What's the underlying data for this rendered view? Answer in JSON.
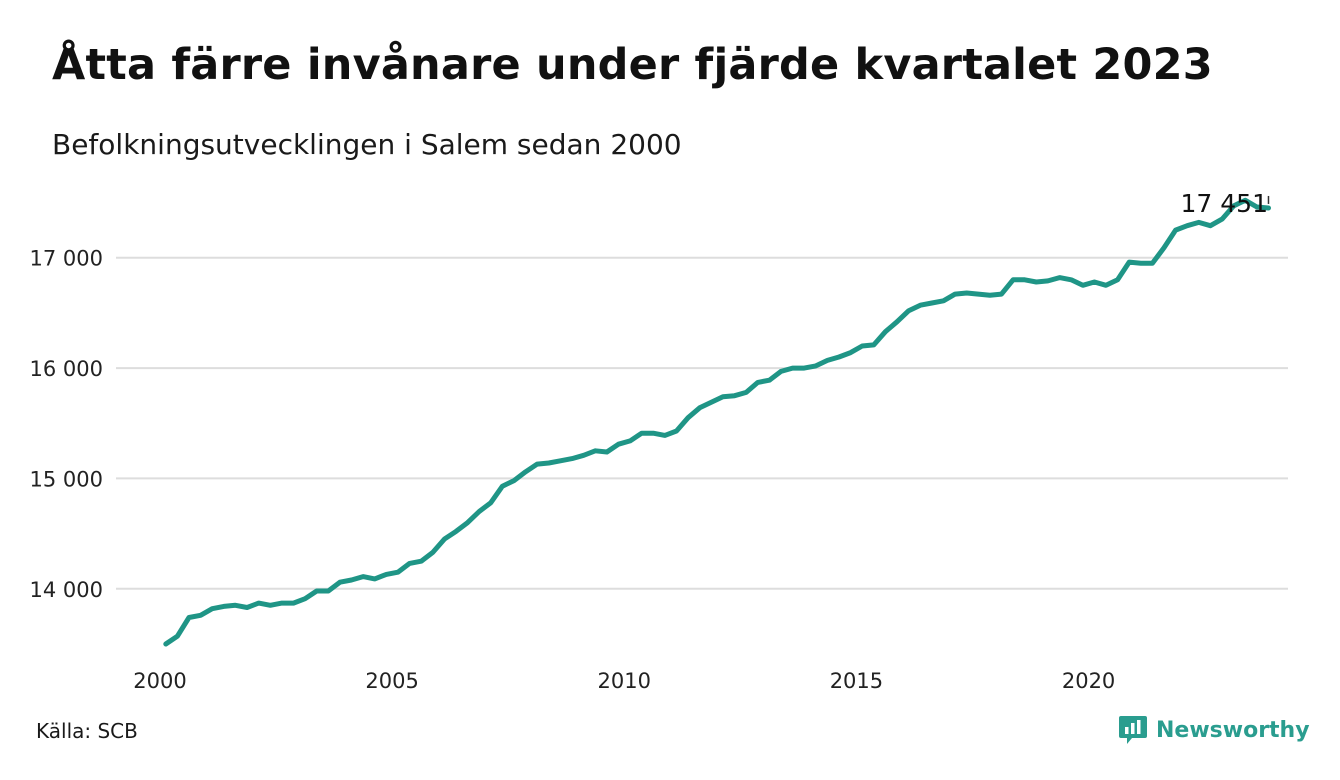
{
  "title": "Åtta färre invånare under fjärde kvartalet 2023",
  "subtitle": "Befolkningsutvecklingen i Salem sedan 2000",
  "source": "Källa: SCB",
  "brand": {
    "name": "Newsworthy",
    "icon": "bar-chart-speech-icon",
    "color": "#2a9d8f"
  },
  "chart_data": {
    "type": "line",
    "title": "Åtta färre invånare under fjärde kvartalet 2023",
    "subtitle": "Befolkningsutvecklingen i Salem sedan 2000",
    "xlabel": "",
    "ylabel": "",
    "xlim": [
      2000,
      2024.5
    ],
    "ylim": [
      13400,
      17650
    ],
    "x_ticks": [
      2000,
      2005,
      2010,
      2015,
      2020
    ],
    "x_tick_labels": [
      "2000",
      "2005",
      "2010",
      "2015",
      "2020"
    ],
    "y_ticks": [
      14000,
      15000,
      16000,
      17000
    ],
    "y_tick_labels": [
      "14 000",
      "15 000",
      "16 000",
      "17 000"
    ],
    "grid": "horizontal",
    "line_color": "#1f9586",
    "end_label": "17 451",
    "series": [
      {
        "x_start": 2000.125,
        "x_step": 0.25,
        "values": [
          13500,
          13570,
          13740,
          13760,
          13820,
          13840,
          13850,
          13830,
          13870,
          13850,
          13870,
          13870,
          13910,
          13980,
          13980,
          14060,
          14080,
          14110,
          14090,
          14130,
          14150,
          14230,
          14250,
          14330,
          14450,
          14520,
          14600,
          14700,
          14780,
          14930,
          14980,
          15060,
          15130,
          15140,
          15160,
          15180,
          15210,
          15250,
          15240,
          15310,
          15340,
          15410,
          15410,
          15390,
          15430,
          15550,
          15640,
          15690,
          15740,
          15750,
          15780,
          15870,
          15890,
          15970,
          16000,
          16000,
          16020,
          16070,
          16100,
          16140,
          16200,
          16210,
          16330,
          16420,
          16520,
          16570,
          16590,
          16610,
          16670,
          16680,
          16670,
          16660,
          16670,
          16800,
          16800,
          16780,
          16790,
          16820,
          16800,
          16750,
          16780,
          16750,
          16800,
          16960,
          16950,
          16950,
          17090,
          17250,
          17290,
          17320,
          17290,
          17350,
          17470,
          17520,
          17460,
          17451
        ]
      }
    ]
  }
}
